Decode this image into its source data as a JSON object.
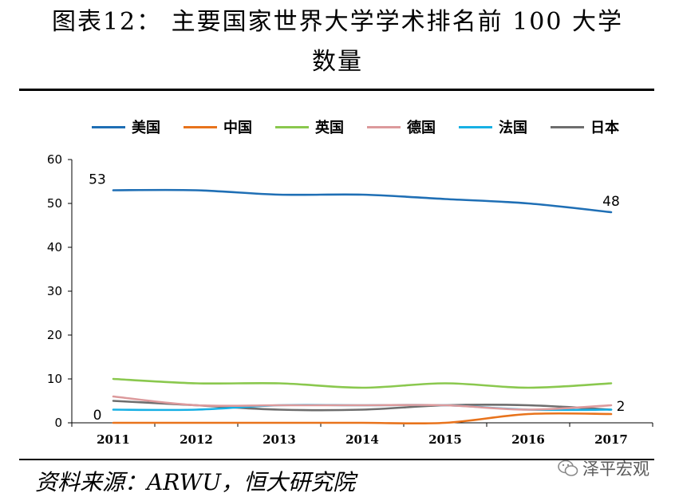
{
  "title_line1": "图表12： 主要国家世界大学学术排名前 100 大学",
  "title_line2": "数量",
  "source": "资料来源：ARWU，恒大研究院",
  "watermark": "泽平宏观",
  "chart_data": {
    "type": "line",
    "x": [
      "2011",
      "2012",
      "2013",
      "2014",
      "2015",
      "2016",
      "2017"
    ],
    "ylim": [
      0,
      60
    ],
    "yticks": [
      0,
      10,
      20,
      30,
      40,
      50,
      60
    ],
    "legend_position": "top",
    "series": [
      {
        "name": "美国",
        "color": "#1f6fb5",
        "values": [
          53,
          53,
          52,
          52,
          51,
          50,
          48
        ]
      },
      {
        "name": "中国",
        "color": "#e8731c",
        "values": [
          0,
          0,
          0,
          0,
          0,
          2,
          2
        ]
      },
      {
        "name": "英国",
        "color": "#8ac84e",
        "values": [
          10,
          9,
          9,
          8,
          9,
          8,
          9
        ]
      },
      {
        "name": "德国",
        "color": "#dc9a9c",
        "values": [
          6,
          4,
          4,
          4,
          4,
          3,
          4
        ]
      },
      {
        "name": "法国",
        "color": "#17b0e4",
        "values": [
          3,
          3,
          4,
          4,
          4,
          3,
          3
        ]
      },
      {
        "name": "日本",
        "color": "#6e6e6e",
        "values": [
          5,
          4,
          3,
          3,
          4,
          4,
          3
        ]
      }
    ],
    "annotations": [
      {
        "series": "美国",
        "index": 0,
        "text": "53"
      },
      {
        "series": "美国",
        "index": 6,
        "text": "48"
      },
      {
        "series": "中国",
        "index": 0,
        "text": "0"
      },
      {
        "series": "中国",
        "index": 6,
        "text": "2"
      }
    ]
  }
}
